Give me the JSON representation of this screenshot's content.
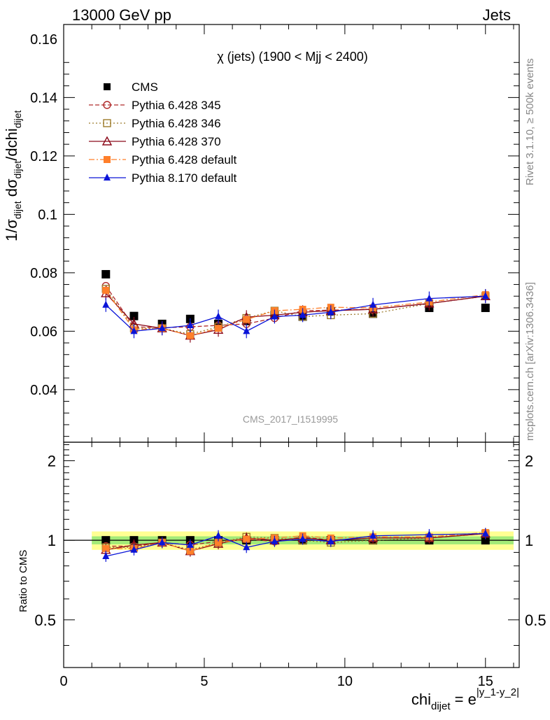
{
  "header": {
    "left": "13000 GeV pp",
    "right": "Jets",
    "side_top": "Rivet 3.1.10, ≥ 500k events",
    "side_bottom": "mcplots.cern.ch [arXiv:1306.3436]"
  },
  "colors": {
    "cms": "#000000",
    "p345": "#b02a2a",
    "p346": "#9c7a2a",
    "p370": "#8b0a1a",
    "pdef": "#ff7f2a",
    "p8": "#0a14d8",
    "band_yellow": "#ffff80",
    "band_green": "#66dd66"
  },
  "chart_data": {
    "type": "line",
    "title": "χ (jets) (1900 < Mjj < 2400)",
    "watermark": "CMS_2017_I1519995",
    "xlabel_main": "chi",
    "xlabel_sub": "dijet",
    "xlabel_eq": " = e",
    "xlabel_sup": "|y_1-y_2|",
    "ylabel_main": "1/σ",
    "ylabel_sub1": "dijet",
    "ylabel_mid": " dσ",
    "ylabel_sub2": "dijet",
    "ylabel_end": "/dchi",
    "ylabel_sub3": "dijet",
    "ratio_ylabel": "Ratio to CMS",
    "xlim": [
      0,
      16.2
    ],
    "ylim": [
      0.022,
      0.165
    ],
    "ratio_ylim": [
      0.33,
      2.35
    ],
    "x_ticks": [
      "0",
      "5",
      "10",
      "15"
    ],
    "y_ticks": [
      "0.04",
      "0.06",
      "0.08",
      "0.1",
      "0.12",
      "0.14",
      "0.16"
    ],
    "ratio_ticks": [
      "0.5",
      "1",
      "2"
    ],
    "x": [
      1.5,
      2.5,
      3.5,
      4.5,
      5.5,
      6.5,
      7.5,
      8.5,
      9.5,
      11,
      13,
      15
    ],
    "legend_position": "top-left",
    "grid": false,
    "series": [
      {
        "name": "CMS",
        "values": [
          0.0795,
          0.0652,
          0.0625,
          0.0642,
          0.0625,
          0.0635,
          0.0655,
          0.065,
          0.0668,
          0.066,
          0.068,
          0.068
        ],
        "ratio": [
          1,
          1,
          1,
          1,
          1,
          1,
          1,
          1,
          1,
          1,
          1,
          1
        ]
      },
      {
        "name": "Pythia 6.428 345",
        "values": [
          0.0755,
          0.0615,
          0.0612,
          0.0615,
          0.062,
          0.0625,
          0.0645,
          0.067,
          0.0672,
          0.0675,
          0.0695,
          0.072
        ],
        "ratio": [
          0.95,
          0.95,
          0.98,
          0.96,
          0.99,
          1.01,
          0.99,
          1.03,
          1.0,
          1.02,
          1.02,
          1.06
        ]
      },
      {
        "name": "Pythia 6.428 346",
        "values": [
          0.0745,
          0.061,
          0.061,
          0.059,
          0.0615,
          0.0645,
          0.067,
          0.065,
          0.0655,
          0.066,
          0.0695,
          0.072
        ],
        "ratio": [
          0.94,
          0.94,
          0.98,
          0.92,
          0.98,
          1.03,
          1.02,
          1.0,
          0.98,
          1.0,
          1.02,
          1.06
        ]
      },
      {
        "name": "Pythia 6.428 370",
        "values": [
          0.073,
          0.0625,
          0.061,
          0.0585,
          0.0605,
          0.0648,
          0.0655,
          0.0665,
          0.067,
          0.0675,
          0.0695,
          0.072
        ],
        "ratio": [
          0.92,
          0.96,
          0.98,
          0.91,
          0.97,
          1.02,
          1.0,
          1.02,
          1.0,
          1.02,
          1.02,
          1.06
        ]
      },
      {
        "name": "Pythia 6.428 default",
        "values": [
          0.074,
          0.0605,
          0.061,
          0.0585,
          0.061,
          0.064,
          0.067,
          0.0675,
          0.0682,
          0.068,
          0.07,
          0.0725
        ],
        "ratio": [
          0.93,
          0.93,
          0.98,
          0.91,
          0.98,
          1.01,
          1.02,
          1.04,
          1.02,
          1.03,
          1.03,
          1.07
        ]
      },
      {
        "name": "Pythia 8.170 default",
        "values": [
          0.069,
          0.06,
          0.061,
          0.062,
          0.065,
          0.06,
          0.065,
          0.0655,
          0.0665,
          0.069,
          0.0712,
          0.072
        ],
        "ratio": [
          0.87,
          0.92,
          0.98,
          0.96,
          1.04,
          0.94,
          0.99,
          1.01,
          0.99,
          1.04,
          1.05,
          1.06
        ]
      }
    ]
  }
}
